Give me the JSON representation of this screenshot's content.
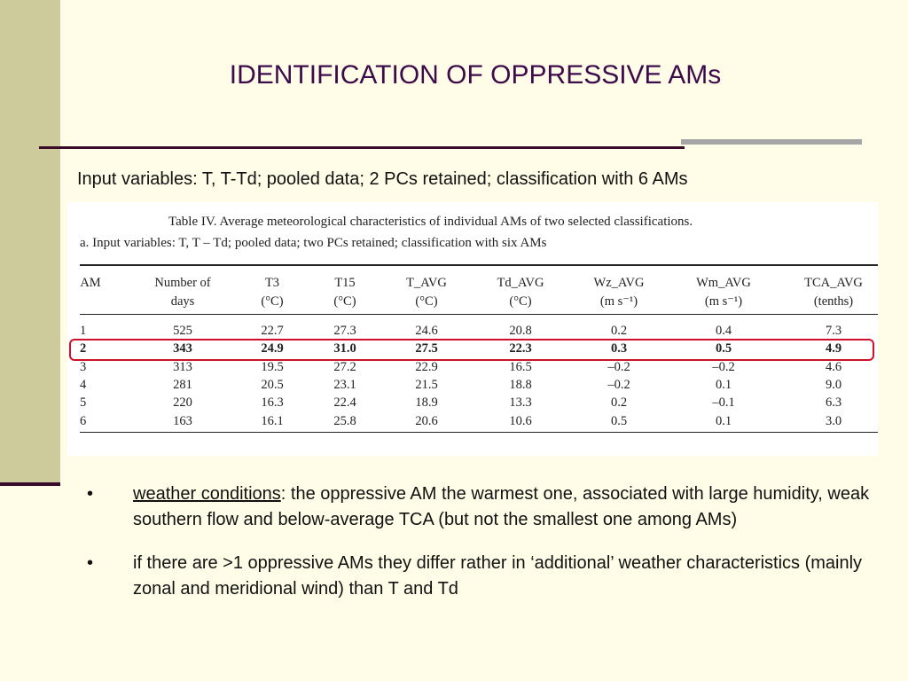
{
  "slide": {
    "title": "IDENTIFICATION OF OPPRESSIVE AMs",
    "subtitle": "Input variables: T, T-Td; pooled data; 2 PCs retained; classification with 6 AMs"
  },
  "table": {
    "caption": "Table IV.  Average meteorological characteristics of individual AMs of two selected classifications.",
    "subcaption": "a. Input variables: T, T – Td; pooled data; two PCs retained; classification with six AMs",
    "headers_line1": [
      "AM",
      "Number of",
      "T3",
      "T15",
      "T_AVG",
      "Td_AVG",
      "Wz_AVG",
      "Wm_AVG",
      "TCA_AVG"
    ],
    "headers_line2": [
      "",
      "days",
      "(°C)",
      "(°C)",
      "(°C)",
      "(°C)",
      "(m s⁻¹)",
      "(m s⁻¹)",
      "(tenths)"
    ],
    "rows": [
      [
        "1",
        "525",
        "22.7",
        "27.3",
        "24.6",
        "20.8",
        "0.2",
        "0.4",
        "7.3"
      ],
      [
        "2",
        "343",
        "24.9",
        "31.0",
        "27.5",
        "22.3",
        "0.3",
        "0.5",
        "4.9"
      ],
      [
        "3",
        "313",
        "19.5",
        "27.2",
        "22.9",
        "16.5",
        "–0.2",
        "–0.2",
        "4.6"
      ],
      [
        "4",
        "281",
        "20.5",
        "23.1",
        "21.5",
        "18.8",
        "–0.2",
        "0.1",
        "9.0"
      ],
      [
        "5",
        "220",
        "16.3",
        "22.4",
        "18.9",
        "13.3",
        "0.2",
        "–0.1",
        "6.3"
      ],
      [
        "6",
        "163",
        "16.1",
        "25.8",
        "20.6",
        "10.6",
        "0.5",
        "0.1",
        "3.0"
      ]
    ],
    "highlight_color": "#d0102a"
  },
  "bullets": [
    {
      "symbol": "•",
      "lead": "weather conditions",
      "text": ": the oppressive AM the warmest one, associated with large humidity, weak southern flow and below-average TCA (but not the smallest one among AMs)"
    },
    {
      "symbol": "•",
      "lead": "",
      "text": "if there are >1 oppressive AMs they differ rather in ‘additional’ weather characteristics (mainly zonal and meridional wind) than T and Td"
    }
  ]
}
